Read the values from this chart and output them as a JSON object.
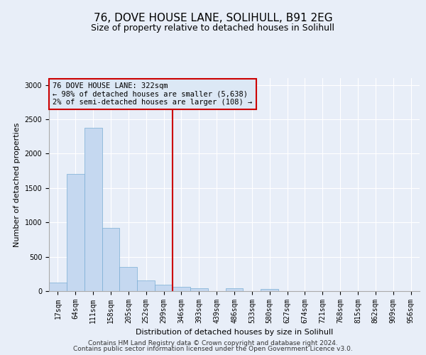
{
  "title": "76, DOVE HOUSE LANE, SOLIHULL, B91 2EG",
  "subtitle": "Size of property relative to detached houses in Solihull",
  "xlabel": "Distribution of detached houses by size in Solihull",
  "ylabel": "Number of detached properties",
  "bin_labels": [
    "17sqm",
    "64sqm",
    "111sqm",
    "158sqm",
    "205sqm",
    "252sqm",
    "299sqm",
    "346sqm",
    "393sqm",
    "439sqm",
    "486sqm",
    "533sqm",
    "580sqm",
    "627sqm",
    "674sqm",
    "721sqm",
    "768sqm",
    "815sqm",
    "862sqm",
    "909sqm",
    "956sqm"
  ],
  "bar_values": [
    120,
    1700,
    2380,
    920,
    350,
    155,
    90,
    65,
    45,
    0,
    40,
    0,
    30,
    0,
    0,
    0,
    0,
    0,
    0,
    0,
    0
  ],
  "bar_color": "#c5d8f0",
  "bar_edge_color": "#7aadd4",
  "vline_color": "#cc0000",
  "annotation_text": "76 DOVE HOUSE LANE: 322sqm\n← 98% of detached houses are smaller (5,638)\n2% of semi-detached houses are larger (108) →",
  "annotation_box_facecolor": "#dce8f5",
  "annotation_border_color": "#cc0000",
  "ylim": [
    0,
    3100
  ],
  "yticks": [
    0,
    500,
    1000,
    1500,
    2000,
    2500,
    3000
  ],
  "footer_line1": "Contains HM Land Registry data © Crown copyright and database right 2024.",
  "footer_line2": "Contains public sector information licensed under the Open Government Licence v3.0.",
  "bg_color": "#e8eef8",
  "plot_bg_color": "#e8eef8",
  "grid_color": "#ffffff",
  "title_fontsize": 11,
  "subtitle_fontsize": 9,
  "label_fontsize": 8,
  "tick_fontsize": 7,
  "annot_fontsize": 7.5,
  "footer_fontsize": 6.5
}
